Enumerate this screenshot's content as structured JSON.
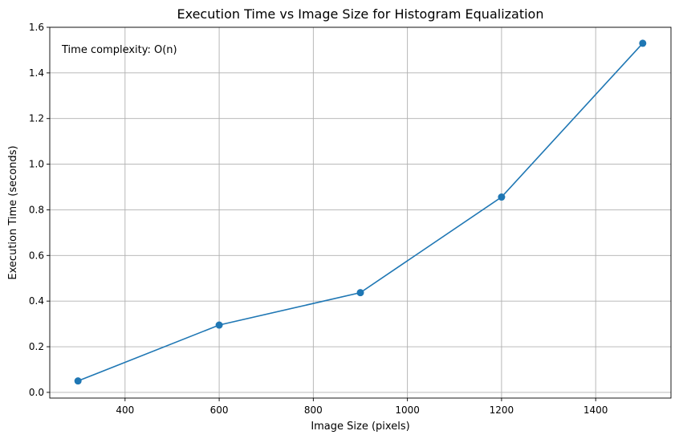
{
  "chart_data": {
    "type": "line",
    "title": "Execution Time vs Image Size for Histogram Equalization",
    "xlabel": "Image Size (pixels)",
    "ylabel": "Execution Time (seconds)",
    "annotation": "Time complexity: O(n)",
    "x": [
      300,
      600,
      900,
      1200,
      1500
    ],
    "series": [
      {
        "values": [
          0.05,
          0.295,
          0.437,
          0.856,
          1.53
        ],
        "color": "#1f77b4",
        "marker": "circle"
      }
    ],
    "xlim": [
      240,
      1560
    ],
    "ylim": [
      -0.025,
      1.6
    ],
    "xticks": [
      400,
      600,
      800,
      1000,
      1200,
      1400
    ],
    "yticks": [
      0.0,
      0.2,
      0.4,
      0.6,
      0.8,
      1.0,
      1.2,
      1.4,
      1.6
    ],
    "xtick_labels": [
      "400",
      "600",
      "800",
      "1000",
      "1200",
      "1400"
    ],
    "ytick_labels": [
      "0.0",
      "0.2",
      "0.4",
      "0.6",
      "0.8",
      "1.0",
      "1.2",
      "1.4",
      "1.6"
    ],
    "grid": true
  }
}
